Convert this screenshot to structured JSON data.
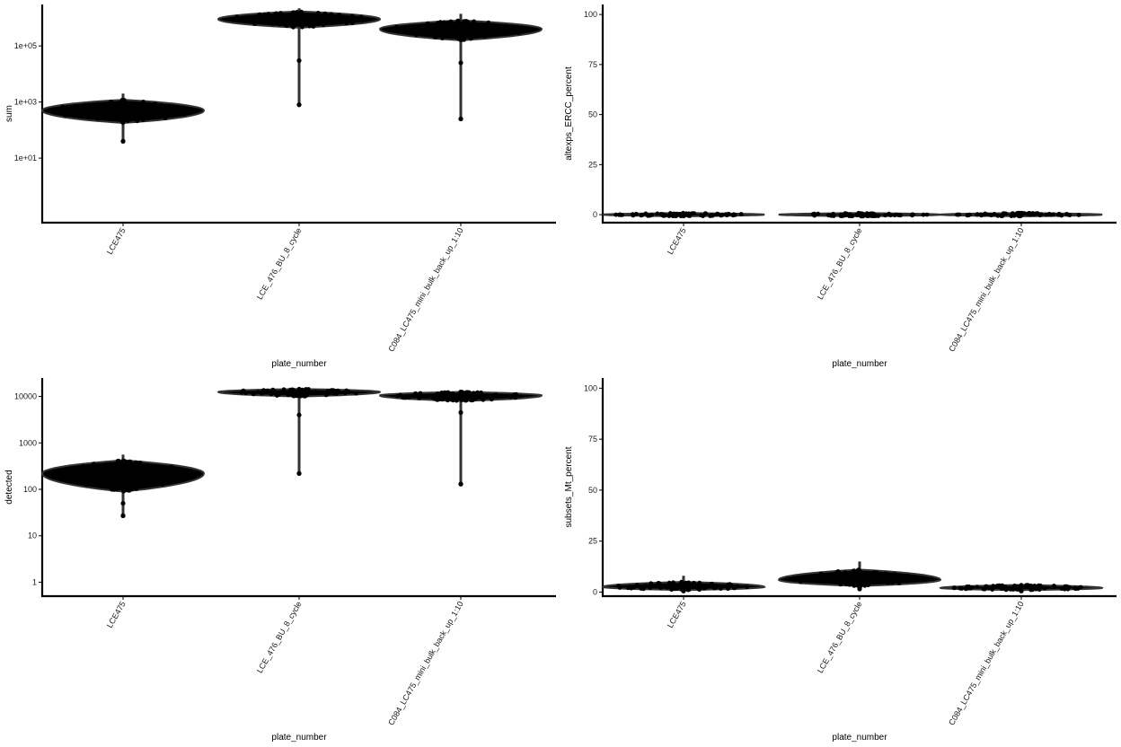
{
  "chart_data": [
    {
      "type": "violin",
      "xlabel": "plate_number",
      "ylabel": "sum",
      "log_scale": true,
      "categories": [
        "LCE475",
        "LCE_476_BU_8_cycle",
        "C084_LC475_mini_bulk_back_up_1:10"
      ],
      "ylim": [
        0.05,
        3000000
      ],
      "y_ticks": [
        10,
        1000,
        100000
      ],
      "y_tick_labels": [
        "1e+01",
        "1e+03",
        "1e+05"
      ],
      "grid": false,
      "series": [
        {
          "median": 500,
          "q_low": 180,
          "q_high": 1200,
          "min": 40,
          "max": 2000,
          "outliers": [
            40
          ]
        },
        {
          "median": 900000,
          "q_low": 450000,
          "q_high": 1700000,
          "min": 800,
          "max": 2200000,
          "outliers": [
            30000,
            800
          ]
        },
        {
          "median": 400000,
          "q_low": 160000,
          "q_high": 800000,
          "min": 250,
          "max": 1400000,
          "outliers": [
            25000,
            250
          ]
        }
      ]
    },
    {
      "type": "violin",
      "xlabel": "plate_number",
      "ylabel": "altexps_ERCC_percent",
      "log_scale": false,
      "categories": [
        "LCE475",
        "LCE_476_BU_8_cycle",
        "C084_LC475_mini_bulk_back_up_1:10"
      ],
      "ylim": [
        -4,
        105
      ],
      "y_ticks": [
        0,
        25,
        50,
        75,
        100
      ],
      "y_tick_labels": [
        "0",
        "25",
        "50",
        "75",
        "100"
      ],
      "grid": false,
      "series": [
        {
          "median": 0,
          "q_low": -0.8,
          "q_high": 0.8,
          "min": 0,
          "max": 0.5,
          "outliers": []
        },
        {
          "median": 0,
          "q_low": -0.8,
          "q_high": 0.8,
          "min": 0,
          "max": 0.3,
          "outliers": []
        },
        {
          "median": 0,
          "q_low": -0.8,
          "q_high": 0.8,
          "min": 0,
          "max": 0.3,
          "outliers": []
        }
      ]
    },
    {
      "type": "violin",
      "xlabel": "plate_number",
      "ylabel": "detected",
      "log_scale": true,
      "categories": [
        "LCE475",
        "LCE_476_BU_8_cycle",
        "C084_LC475_mini_bulk_back_up_1:10"
      ],
      "ylim": [
        0.5,
        25000
      ],
      "y_ticks": [
        1,
        10,
        100,
        1000,
        10000
      ],
      "y_tick_labels": [
        "1",
        "10",
        "100",
        "1000",
        "10000"
      ],
      "grid": false,
      "series": [
        {
          "median": 220,
          "q_low": 90,
          "q_high": 420,
          "min": 27,
          "max": 560,
          "outliers": [
            27,
            50
          ]
        },
        {
          "median": 12500,
          "q_low": 10000,
          "q_high": 14500,
          "min": 220,
          "max": 15500,
          "outliers": [
            4000,
            220
          ]
        },
        {
          "median": 10500,
          "q_low": 8000,
          "q_high": 12500,
          "min": 130,
          "max": 14000,
          "outliers": [
            4500,
            130
          ]
        }
      ]
    },
    {
      "type": "violin",
      "xlabel": "plate_number",
      "ylabel": "subsets_Mt_percent",
      "log_scale": false,
      "categories": [
        "LCE475",
        "LCE_476_BU_8_cycle",
        "C084_LC475_mini_bulk_back_up_1:10"
      ],
      "ylim": [
        -2,
        105
      ],
      "y_ticks": [
        0,
        25,
        50,
        75,
        100
      ],
      "y_tick_labels": [
        "0",
        "25",
        "50",
        "75",
        "100"
      ],
      "grid": false,
      "series": [
        {
          "median": 2.5,
          "q_low": 1,
          "q_high": 5,
          "min": 0.5,
          "max": 8,
          "outliers": []
        },
        {
          "median": 6,
          "q_low": 3,
          "q_high": 11,
          "min": 1.5,
          "max": 15,
          "outliers": []
        },
        {
          "median": 2,
          "q_low": 1,
          "q_high": 3.5,
          "min": 0.5,
          "max": 4,
          "outliers": []
        }
      ]
    }
  ]
}
